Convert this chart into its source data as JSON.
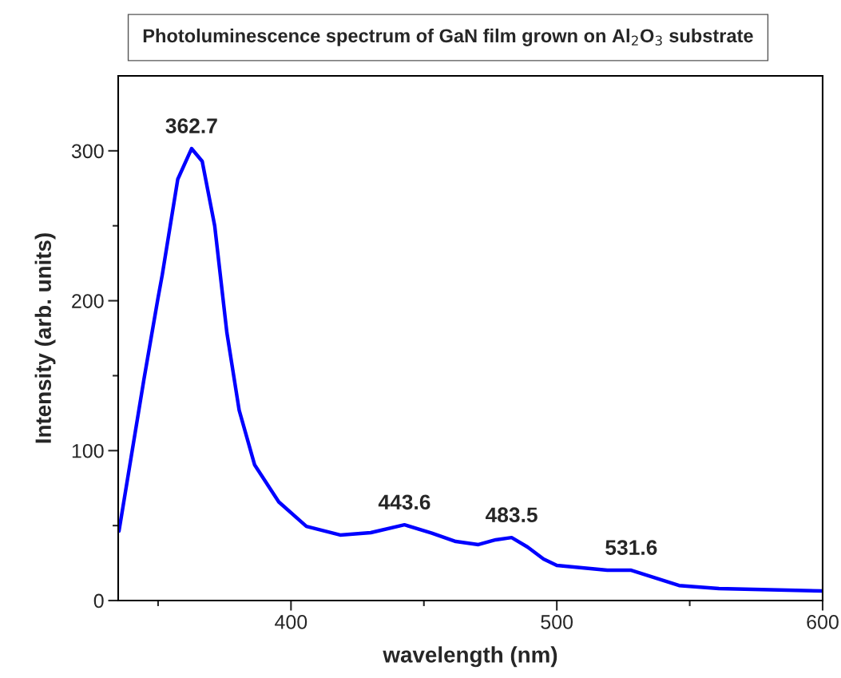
{
  "chart_data": {
    "type": "line",
    "title": "Photoluminescence spectrum of GaN film grown on Al$_{2}$O$_{3}$ substrate",
    "xlabel": "wavelength (nm)",
    "ylabel": "Intensity (arb. units)",
    "xlim": [
      335,
      600
    ],
    "ylim": [
      0,
      350
    ],
    "xticks": [
      {
        "value": 350,
        "label": null
      },
      400,
      {
        "value": 450,
        "label": null
      },
      500,
      {
        "value": 550,
        "label": null
      },
      600
    ],
    "yticks": [
      0,
      {
        "value": 50,
        "label": null
      },
      100,
      {
        "value": 150,
        "label": null
      },
      200,
      {
        "value": 250,
        "label": null
      },
      300
    ],
    "grid": false,
    "marker": "none",
    "line_style": "solid",
    "series": [
      {
        "color": "#0000ff",
        "x": [
          335.3,
          344.7,
          349.9,
          351.6,
          357.4,
          362.6,
          366.6,
          371.3,
          375.9,
          380.5,
          386.3,
          395.4,
          405.8,
          418.5,
          430,
          442.7,
          453,
          462,
          470.5,
          477,
          483,
          489,
          495,
          500,
          519,
          528,
          546,
          561,
          600
        ],
        "values": [
          46.4,
          147.8,
          201,
          217.5,
          281,
          301.5,
          293,
          250,
          178.5,
          127,
          90.6,
          65.8,
          49.5,
          43.7,
          45.3,
          50.5,
          45,
          39.4,
          37.3,
          40.5,
          42,
          35.7,
          27.7,
          23.4,
          20.2,
          20.2,
          10,
          8,
          6.4
        ]
      }
    ],
    "annotations": [
      {
        "text": "362.7",
        "x": 362.6,
        "y": 301.5
      },
      {
        "text": "443.6",
        "x": 442.7,
        "y": 50.5
      },
      {
        "text": "483.5",
        "x": 483,
        "y": 42
      },
      {
        "text": "531.6",
        "x": 528,
        "y": 20.2
      }
    ]
  }
}
